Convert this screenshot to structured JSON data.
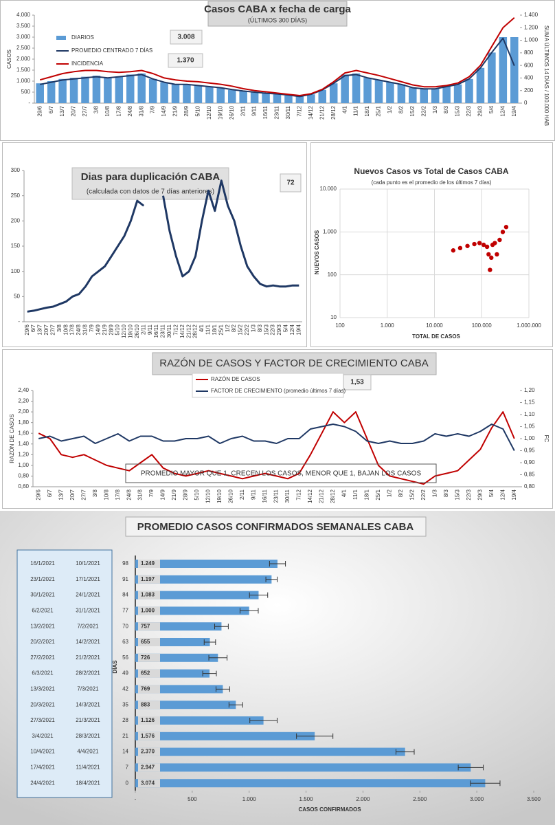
{
  "chart_data": [
    {
      "type": "bar",
      "title": "Casos  CABA x fecha  de carga",
      "subtitle": "(ÚLTIMOS 300 DÍAS)",
      "ylabel": "CASOS",
      "y2label": "SUMA ÚLTIMOS 14 DÍAS / 100.000 HAB",
      "annotations": [
        "3.008",
        "1.370"
      ],
      "categories": [
        "29/6",
        "6/7",
        "13/7",
        "20/7",
        "27/7",
        "3/8",
        "10/8",
        "17/8",
        "24/8",
        "31/8",
        "7/9",
        "14/9",
        "21/9",
        "28/9",
        "5/10",
        "12/10",
        "19/10",
        "26/10",
        "2/11",
        "9/11",
        "16/11",
        "23/11",
        "30/11",
        "7/12",
        "14/12",
        "21/12",
        "28/12",
        "4/1",
        "11/1",
        "18/1",
        "25/1",
        "1/2",
        "8/2",
        "15/2",
        "22/2",
        "1/3",
        "8/3",
        "15/3",
        "22/3",
        "29/3",
        "5/4",
        "12/4",
        "19/4"
      ],
      "series": [
        {
          "name": "DIARIOS",
          "type": "bar",
          "color": "#5b9bd5",
          "values": [
            900,
            1000,
            1100,
            1150,
            1200,
            1250,
            1150,
            1200,
            1300,
            1350,
            1100,
            950,
            850,
            850,
            800,
            750,
            700,
            600,
            550,
            500,
            450,
            400,
            350,
            300,
            400,
            600,
            900,
            1300,
            1350,
            1150,
            1050,
            950,
            850,
            700,
            650,
            650,
            750,
            850,
            1100,
            1600,
            2300,
            3000,
            3000
          ]
        },
        {
          "name": "PROMEDIO CENTRADO 7 DÍAS",
          "type": "line",
          "color": "#1f3864",
          "values": [
            850,
            950,
            1050,
            1100,
            1150,
            1200,
            1150,
            1200,
            1250,
            1300,
            1100,
            950,
            850,
            850,
            800,
            750,
            700,
            620,
            550,
            500,
            450,
            420,
            370,
            300,
            400,
            600,
            900,
            1250,
            1300,
            1150,
            1050,
            950,
            850,
            700,
            650,
            650,
            750,
            850,
            1100,
            1600,
            2300,
            2950,
            1700
          ]
        },
        {
          "name": "INCIDENCIA",
          "type": "line",
          "axis": "y2",
          "color": "#c00000",
          "values": [
            370,
            420,
            470,
            500,
            520,
            520,
            500,
            490,
            500,
            520,
            470,
            400,
            370,
            350,
            340,
            320,
            300,
            270,
            230,
            200,
            180,
            160,
            140,
            120,
            150,
            220,
            340,
            480,
            520,
            480,
            440,
            390,
            340,
            290,
            260,
            260,
            280,
            320,
            420,
            600,
            900,
            1200,
            1360
          ]
        }
      ],
      "ylim": [
        0,
        4000
      ],
      "yticks": [
        {
          "value": 0,
          "label": "-"
        },
        500,
        {
          "value": 1000,
          "label": "1.000"
        },
        {
          "value": 1500,
          "label": "1.500"
        },
        {
          "value": 2000,
          "label": "2.000"
        },
        {
          "value": 2500,
          "label": "2.500"
        },
        {
          "value": 3000,
          "label": "3.000"
        },
        {
          "value": 3500,
          "label": "3.500"
        },
        {
          "value": 4000,
          "label": "4.000"
        }
      ],
      "y2lim": [
        0,
        1400
      ],
      "y2ticks": [
        0,
        200,
        400,
        600,
        800,
        {
          "value": 1000,
          "label": "1.000"
        },
        {
          "value": 1200,
          "label": "1.200"
        },
        {
          "value": 1400,
          "label": "1.400"
        }
      ],
      "grid": false
    },
    {
      "type": "line",
      "title": "Dias para duplicación CABA",
      "subtitle": "(calculada con datos de 7 días anteriores)",
      "annotations": [
        "72"
      ],
      "categories": [
        "29/6",
        "6/7",
        "13/7",
        "20/7",
        "27/7",
        "3/8",
        "10/8",
        "17/8",
        "24/8",
        "31/8",
        "7/9",
        "14/9",
        "21/9",
        "28/9",
        "5/10",
        "12/10",
        "19/10",
        "26/10",
        "2/11",
        "9/11",
        "16/11",
        "23/11",
        "30/11",
        "7/12",
        "14/12",
        "21/12",
        "28/12",
        "4/1",
        "11/1",
        "18/1",
        "25/1",
        "1/2",
        "8/2",
        "15/2",
        "22/2",
        "1/3",
        "8/3",
        "15/3",
        "22/3",
        "29/3",
        "5/4",
        "12/4",
        "19/4"
      ],
      "series": [
        {
          "color": "#1f3864",
          "values": [
            20,
            22,
            25,
            28,
            30,
            35,
            40,
            50,
            55,
            70,
            90,
            100,
            110,
            130,
            150,
            170,
            200,
            240,
            230,
            null,
            null,
            250,
            180,
            130,
            90,
            100,
            130,
            200,
            260,
            220,
            280,
            230,
            200,
            150,
            110,
            90,
            75,
            70,
            72,
            70,
            70,
            72,
            72
          ]
        }
      ],
      "ylim": [
        0,
        300
      ],
      "yticks": [
        {
          "value": 0,
          "label": "-"
        },
        50,
        100,
        150,
        200,
        250,
        300
      ],
      "grid": false
    },
    {
      "type": "scatter",
      "title": "Nuevos Casos vs Total de Casos CABA",
      "subtitle": "(cada punto es el promedio de los últimos 7 días)",
      "xlabel": "TOTAL DE CASOS",
      "ylabel": "NUEVOS CASOS",
      "xscale": "log",
      "yscale": "log",
      "color": "#c00000",
      "x": [
        25000,
        35000,
        50000,
        70000,
        90000,
        110000,
        130000,
        140000,
        150000,
        160000,
        170000,
        190000,
        210000,
        240000,
        280000,
        330000
      ],
      "y": [
        370,
        420,
        470,
        520,
        550,
        500,
        450,
        300,
        130,
        250,
        500,
        550,
        300,
        650,
        1000,
        1300
      ],
      "xlim": [
        100,
        1000000
      ],
      "xticks": [
        100,
        {
          "value": 1000,
          "label": "1.000"
        },
        {
          "value": 10000,
          "label": "10.000"
        },
        {
          "value": 100000,
          "label": "100.000"
        },
        {
          "value": 1000000,
          "label": "1.000.000"
        }
      ],
      "ylim": [
        10,
        10000
      ],
      "yticks": [
        10,
        100,
        {
          "value": 1000,
          "label": "1.000"
        },
        {
          "value": 10000,
          "label": "10.000"
        }
      ],
      "grid": true
    },
    {
      "type": "line",
      "title": "RAZÓN DE CASOS Y FACTOR DE CRECIMIENTO CABA",
      "ylabel": "RAZÓN DE CASOS",
      "y2label": "FC",
      "annotations": [
        "1,53",
        "PROMEDIO MAYOR QUE 1, CRECEN LOS CASOS, MENOR QUE 1, BAJAN LOS CASOS"
      ],
      "categories": [
        "29/6",
        "6/7",
        "13/7",
        "20/7",
        "27/7",
        "3/8",
        "10/8",
        "17/8",
        "24/8",
        "31/8",
        "7/9",
        "14/9",
        "21/9",
        "28/9",
        "5/10",
        "12/10",
        "19/10",
        "26/10",
        "2/11",
        "9/11",
        "16/11",
        "23/11",
        "30/11",
        "7/12",
        "14/12",
        "21/12",
        "28/12",
        "4/1",
        "11/1",
        "18/1",
        "25/1",
        "1/2",
        "8/2",
        "15/2",
        "22/2",
        "1/3",
        "8/3",
        "15/3",
        "22/3",
        "29/3",
        "5/4",
        "12/4",
        "19/4"
      ],
      "series": [
        {
          "name": "RAZÓN DE CASOS",
          "type": "line",
          "color": "#c00000",
          "values": [
            1.6,
            1.5,
            1.2,
            1.15,
            1.2,
            1.1,
            1.0,
            0.95,
            0.9,
            1.05,
            1.2,
            0.95,
            0.85,
            0.8,
            0.85,
            0.9,
            0.85,
            0.8,
            0.75,
            0.8,
            0.85,
            0.8,
            0.75,
            0.85,
            1.2,
            1.6,
            2.0,
            1.8,
            2.0,
            1.5,
            1.0,
            0.8,
            0.75,
            0.7,
            0.65,
            0.8,
            0.85,
            0.9,
            1.1,
            1.3,
            1.7,
            2.0,
            1.5
          ]
        },
        {
          "name": "FACTOR DE CRECIMIENTO (promedio últimos 7 días)",
          "type": "line",
          "axis": "y2",
          "color": "#1f3864",
          "values": [
            1.0,
            1.01,
            0.99,
            1.0,
            1.01,
            0.98,
            1.0,
            1.02,
            0.99,
            1.01,
            1.01,
            0.99,
            0.99,
            1.0,
            1.0,
            1.01,
            0.98,
            1.0,
            1.01,
            0.99,
            0.99,
            0.98,
            1.0,
            1.0,
            1.04,
            1.05,
            1.06,
            1.05,
            1.03,
            0.99,
            0.98,
            0.99,
            0.98,
            0.98,
            0.99,
            1.02,
            1.01,
            1.02,
            1.01,
            1.03,
            1.06,
            1.04,
            0.95
          ]
        }
      ],
      "ylim": [
        0.6,
        2.4
      ],
      "yticks": [
        {
          "value": 0.6,
          "label": "0,60"
        },
        {
          "value": 0.8,
          "label": "0,80"
        },
        {
          "value": 1.0,
          "label": "1,00"
        },
        {
          "value": 1.2,
          "label": "1,20"
        },
        {
          "value": 1.4,
          "label": "1,40"
        },
        {
          "value": 1.6,
          "label": "1,60"
        },
        {
          "value": 1.8,
          "label": "1,80"
        },
        {
          "value": 2.0,
          "label": "2,00"
        },
        {
          "value": 2.2,
          "label": "2,20"
        },
        {
          "value": 2.4,
          "label": "2,40"
        }
      ],
      "y2lim": [
        0.8,
        1.2
      ],
      "y2ticks": [
        {
          "value": 0.8,
          "label": "0,80"
        },
        {
          "value": 0.85,
          "label": "0,85"
        },
        {
          "value": 0.9,
          "label": "0,90"
        },
        {
          "value": 0.95,
          "label": "0,95"
        },
        {
          "value": 1.0,
          "label": "1,00"
        },
        {
          "value": 1.05,
          "label": "1,05"
        },
        {
          "value": 1.1,
          "label": "1,10"
        },
        {
          "value": 1.15,
          "label": "1,15"
        },
        {
          "value": 1.2,
          "label": "1,20"
        }
      ],
      "grid": false
    },
    {
      "type": "hbar",
      "title": "PROMEDIO CASOS CONFIRMADOS SEMANALES CABA",
      "xlabel": "CASOS CONFIRMADOS",
      "ylabel": "DÍAS",
      "color": "#5b9bd5",
      "week_ranges": [
        [
          "16/1/2021",
          "10/1/2021"
        ],
        [
          "23/1/2021",
          "17/1/2021"
        ],
        [
          "30/1/2021",
          "24/1/2021"
        ],
        [
          "6/2/2021",
          "31/1/2021"
        ],
        [
          "13/2/2021",
          "7/2/2021"
        ],
        [
          "20/2/2021",
          "14/2/2021"
        ],
        [
          "27/2/2021",
          "21/2/2021"
        ],
        [
          "6/3/2021",
          "28/2/2021"
        ],
        [
          "13/3/2021",
          "7/3/2021"
        ],
        [
          "20/3/2021",
          "14/3/2021"
        ],
        [
          "27/3/2021",
          "21/3/2021"
        ],
        [
          "3/4/2021",
          "28/3/2021"
        ],
        [
          "10/4/2021",
          "4/4/2021"
        ],
        [
          "17/4/2021",
          "11/4/2021"
        ],
        [
          "24/4/2021",
          "18/4/2021"
        ]
      ],
      "categories": [
        98,
        91,
        84,
        77,
        70,
        63,
        56,
        49,
        42,
        35,
        28,
        21,
        14,
        7,
        0
      ],
      "values": [
        1249,
        1197,
        1083,
        1000,
        757,
        655,
        726,
        652,
        769,
        883,
        1126,
        1576,
        2370,
        2947,
        3074
      ],
      "value_labels": [
        "1.249",
        "1.197",
        "1.083",
        "1.000",
        "757",
        "655",
        "726",
        "652",
        "769",
        "883",
        "1.126",
        "1.576",
        "2.370",
        "2.947",
        "3.074"
      ],
      "errors": [
        70,
        50,
        80,
        80,
        60,
        50,
        80,
        60,
        60,
        60,
        120,
        160,
        80,
        110,
        130
      ],
      "xlim": [
        0,
        3500
      ],
      "xticks": [
        {
          "value": 0,
          "label": "-"
        },
        500,
        {
          "value": 1000,
          "label": "1.000"
        },
        {
          "value": 1500,
          "label": "1.500"
        },
        {
          "value": 2000,
          "label": "2.000"
        },
        {
          "value": 2500,
          "label": "2.500"
        },
        {
          "value": 3000,
          "label": "3.000"
        },
        {
          "value": 3500,
          "label": "3.500"
        }
      ]
    }
  ]
}
